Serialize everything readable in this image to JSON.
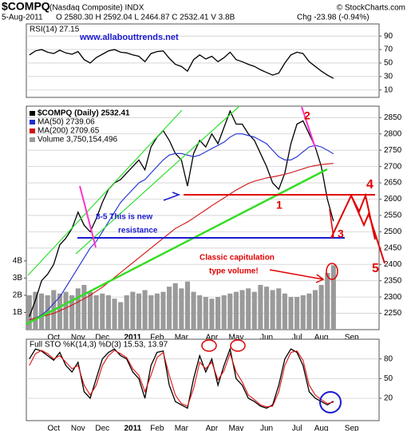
{
  "header": {
    "symbol": "$COMPQ",
    "name": "(Nasdaq Composite) INDX",
    "source": "© StockCharts.com",
    "date": "5-Aug-2011",
    "quote": "O 2580.30 H 2592.04 L 2464.87 C 2532.41 V 3.8B",
    "change": "Chg -23.98 (-0.94%)"
  },
  "annotations": {
    "website": "www.allabouttrends.net",
    "resistance_1": "8-5 This is new",
    "resistance_2": "resistance",
    "capitulation_1": "Classic capitulation",
    "capitulation_2": "type volume!",
    "wave_1": "1",
    "wave_2": "2",
    "wave_3": "3",
    "wave_4": "4",
    "wave_5": "5"
  },
  "chart_data": [
    {
      "type": "line",
      "title": "RSI(14) 27.15",
      "ylim": [
        -1,
        108
      ],
      "yticks": [
        10,
        30,
        50,
        70,
        90
      ],
      "grid": true,
      "series": [
        {
          "color": "#000000",
          "values": [
            62,
            68,
            70,
            66,
            64,
            69,
            65,
            63,
            67,
            55,
            50,
            58,
            63,
            68,
            70,
            66,
            65,
            62,
            60,
            52,
            64,
            67,
            68,
            57,
            48,
            45,
            38,
            55,
            62,
            56,
            60,
            52,
            58,
            66,
            55,
            52,
            48,
            45,
            40,
            36,
            32,
            35,
            50,
            62,
            66,
            64,
            52,
            45,
            38,
            32,
            27.15,
            null,
            null,
            null,
            null,
            null,
            null,
            null
          ]
        }
      ]
    },
    {
      "type": "line",
      "grid": true,
      "ylim": [
        2200,
        2885
      ],
      "yticks": [
        2250,
        2300,
        2350,
        2400,
        2450,
        2500,
        2550,
        2600,
        2650,
        2700,
        2750,
        2800,
        2850
      ],
      "y2lim": [
        0,
        13
      ],
      "y2ticks": [
        {
          "value": 1,
          "label": "1B"
        },
        {
          "value": 2,
          "label": "2B"
        },
        {
          "value": 3,
          "label": "3B"
        },
        {
          "value": 4,
          "label": "4B"
        }
      ],
      "categories": [
        null,
        null,
        null,
        null,
        "Oct",
        null,
        null,
        null,
        "Nov",
        null,
        null,
        null,
        "Dec",
        null,
        null,
        null,
        null,
        "2011",
        null,
        null,
        null,
        "Feb",
        null,
        null,
        null,
        "Mar",
        null,
        null,
        null,
        null,
        "Apr",
        null,
        null,
        null,
        "May",
        null,
        null,
        null,
        null,
        "Jun",
        null,
        null,
        null,
        null,
        "Jul",
        null,
        null,
        null,
        "Aug",
        null,
        null,
        null,
        null,
        "Sep",
        null,
        null,
        null,
        null
      ],
      "series": [
        {
          "name": "$COMPQ (Daily) 2532.41",
          "color": "#000000",
          "values": [
            2240,
            2290,
            2350,
            2370,
            2400,
            2460,
            2480,
            2510,
            2560,
            2520,
            2500,
            2540,
            2590,
            2630,
            2650,
            2660,
            2680,
            2700,
            2720,
            2690,
            2760,
            2790,
            2810,
            2780,
            2740,
            2720,
            2640,
            2740,
            2780,
            2760,
            2800,
            2770,
            2820,
            2870,
            2830,
            2830,
            2800,
            2780,
            2740,
            2700,
            2650,
            2630,
            2680,
            2770,
            2830,
            2840,
            2800,
            2760,
            2700,
            2600,
            2532.41,
            null,
            null,
            null,
            null,
            null,
            null,
            null
          ]
        },
        {
          "name": "MA(50) 2739.06",
          "color": "#1f2fd0",
          "values": [
            2230,
            2235,
            2245,
            2260,
            2280,
            2300,
            2330,
            2360,
            2390,
            2420,
            2450,
            2470,
            2500,
            2530,
            2560,
            2590,
            2610,
            2630,
            2650,
            2660,
            2680,
            2700,
            2720,
            2735,
            2740,
            2740,
            2735,
            2730,
            2735,
            2745,
            2755,
            2765,
            2775,
            2790,
            2800,
            2800,
            2795,
            2790,
            2780,
            2770,
            2750,
            2730,
            2720,
            2720,
            2730,
            2745,
            2760,
            2765,
            2760,
            2750,
            2739.06,
            null,
            null,
            null,
            null,
            null,
            null,
            null
          ]
        },
        {
          "name": "MA(200) 2709.65",
          "color": "#d01010",
          "values": [
            2230,
            2235,
            2240,
            2245,
            2250,
            2258,
            2266,
            2275,
            2285,
            2295,
            2305,
            2318,
            2330,
            2345,
            2360,
            2375,
            2390,
            2405,
            2420,
            2435,
            2450,
            2465,
            2480,
            2495,
            2510,
            2520,
            2530,
            2542,
            2555,
            2567,
            2580,
            2592,
            2604,
            2616,
            2628,
            2638,
            2648,
            2655,
            2660,
            2665,
            2668,
            2672,
            2676,
            2681,
            2687,
            2693,
            2699,
            2703,
            2706,
            2708,
            2709.65,
            null,
            null,
            null,
            null,
            null,
            null,
            null
          ]
        },
        {
          "name": "Volume 3,750,154,496",
          "color": "#9a9a9a",
          "type": "bar",
          "axis": "y2",
          "values": [
            2.0,
            2.2,
            2.1,
            2.0,
            2.3,
            2.1,
            2.2,
            2.0,
            2.4,
            2.6,
            2.2,
            2.0,
            2.1,
            2.0,
            1.8,
            1.6,
            2.0,
            2.2,
            2.1,
            2.3,
            2.0,
            2.1,
            2.2,
            2.5,
            2.7,
            2.4,
            2.8,
            2.2,
            2.0,
            1.9,
            1.8,
            1.9,
            2.0,
            2.1,
            2.2,
            2.3,
            2.4,
            2.2,
            2.6,
            2.5,
            2.3,
            2.4,
            2.1,
            1.9,
            1.9,
            2.0,
            2.1,
            2.3,
            2.6,
            3.3,
            3.75,
            null,
            null,
            null,
            null,
            null,
            null,
            null
          ]
        }
      ]
    },
    {
      "type": "line",
      "title": "Full STO %K(14,3) %D(3) 15.53, 13.97",
      "ylim": [
        -14,
        110
      ],
      "yticks": [
        20,
        50,
        80
      ],
      "grid": true,
      "categories": [
        null,
        null,
        null,
        null,
        "Oct",
        null,
        null,
        null,
        "Nov",
        null,
        null,
        null,
        "Dec",
        null,
        null,
        null,
        null,
        "2011",
        null,
        null,
        null,
        "Feb",
        null,
        null,
        null,
        "Mar",
        null,
        null,
        null,
        null,
        "Apr",
        null,
        null,
        null,
        "May",
        null,
        null,
        null,
        null,
        "Jun",
        null,
        null,
        null,
        null,
        "Jul",
        null,
        null,
        null,
        "Aug",
        null,
        null,
        null,
        null,
        "Sep",
        null,
        null,
        null,
        null
      ],
      "series": [
        {
          "color": "#000000",
          "values": [
            80,
            95,
            92,
            85,
            78,
            90,
            70,
            60,
            75,
            30,
            20,
            50,
            80,
            90,
            95,
            85,
            80,
            60,
            50,
            20,
            70,
            90,
            92,
            40,
            15,
            10,
            5,
            50,
            85,
            60,
            80,
            40,
            70,
            95,
            50,
            40,
            20,
            15,
            8,
            5,
            10,
            40,
            80,
            95,
            90,
            70,
            30,
            20,
            15,
            10,
            15.53,
            null,
            null,
            null,
            null,
            null,
            null,
            null
          ]
        },
        {
          "color": "#e01010",
          "values": [
            70,
            88,
            93,
            88,
            80,
            85,
            75,
            65,
            70,
            40,
            25,
            40,
            70,
            85,
            93,
            88,
            82,
            65,
            55,
            30,
            55,
            82,
            90,
            55,
            25,
            12,
            8,
            35,
            75,
            65,
            75,
            48,
            62,
            88,
            60,
            45,
            25,
            18,
            10,
            7,
            8,
            30,
            70,
            90,
            92,
            78,
            40,
            25,
            18,
            12,
            13.97,
            null,
            null,
            null,
            null,
            null,
            null,
            null
          ]
        }
      ]
    }
  ]
}
